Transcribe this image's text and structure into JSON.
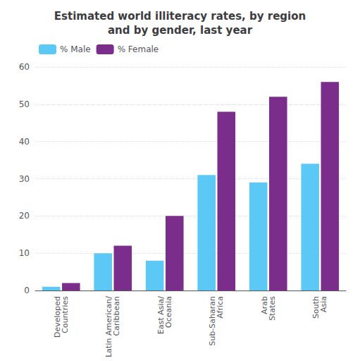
{
  "chart_data": {
    "type": "bar",
    "title": "Estimated world illiteracy rates, by region\nand by gender, last year",
    "categories": [
      "Developed\nCountries",
      "Latin American/\nCaribbean",
      "East Asia/\nOceania",
      "Sub-Saharan\nAfrica",
      "Arab\nStates",
      "South\nAsia"
    ],
    "series": [
      {
        "name": "% Male",
        "color": "#5BC8F5",
        "values": [
          1,
          10,
          8,
          31,
          29,
          34
        ]
      },
      {
        "name": "% Female",
        "color": "#7B2D8B",
        "values": [
          2,
          12,
          20,
          48,
          52,
          56
        ]
      }
    ],
    "ylim": [
      0,
      60
    ],
    "yticks": [
      0,
      10,
      20,
      30,
      40,
      50,
      60
    ],
    "grid": true,
    "legend": "upper left"
  }
}
